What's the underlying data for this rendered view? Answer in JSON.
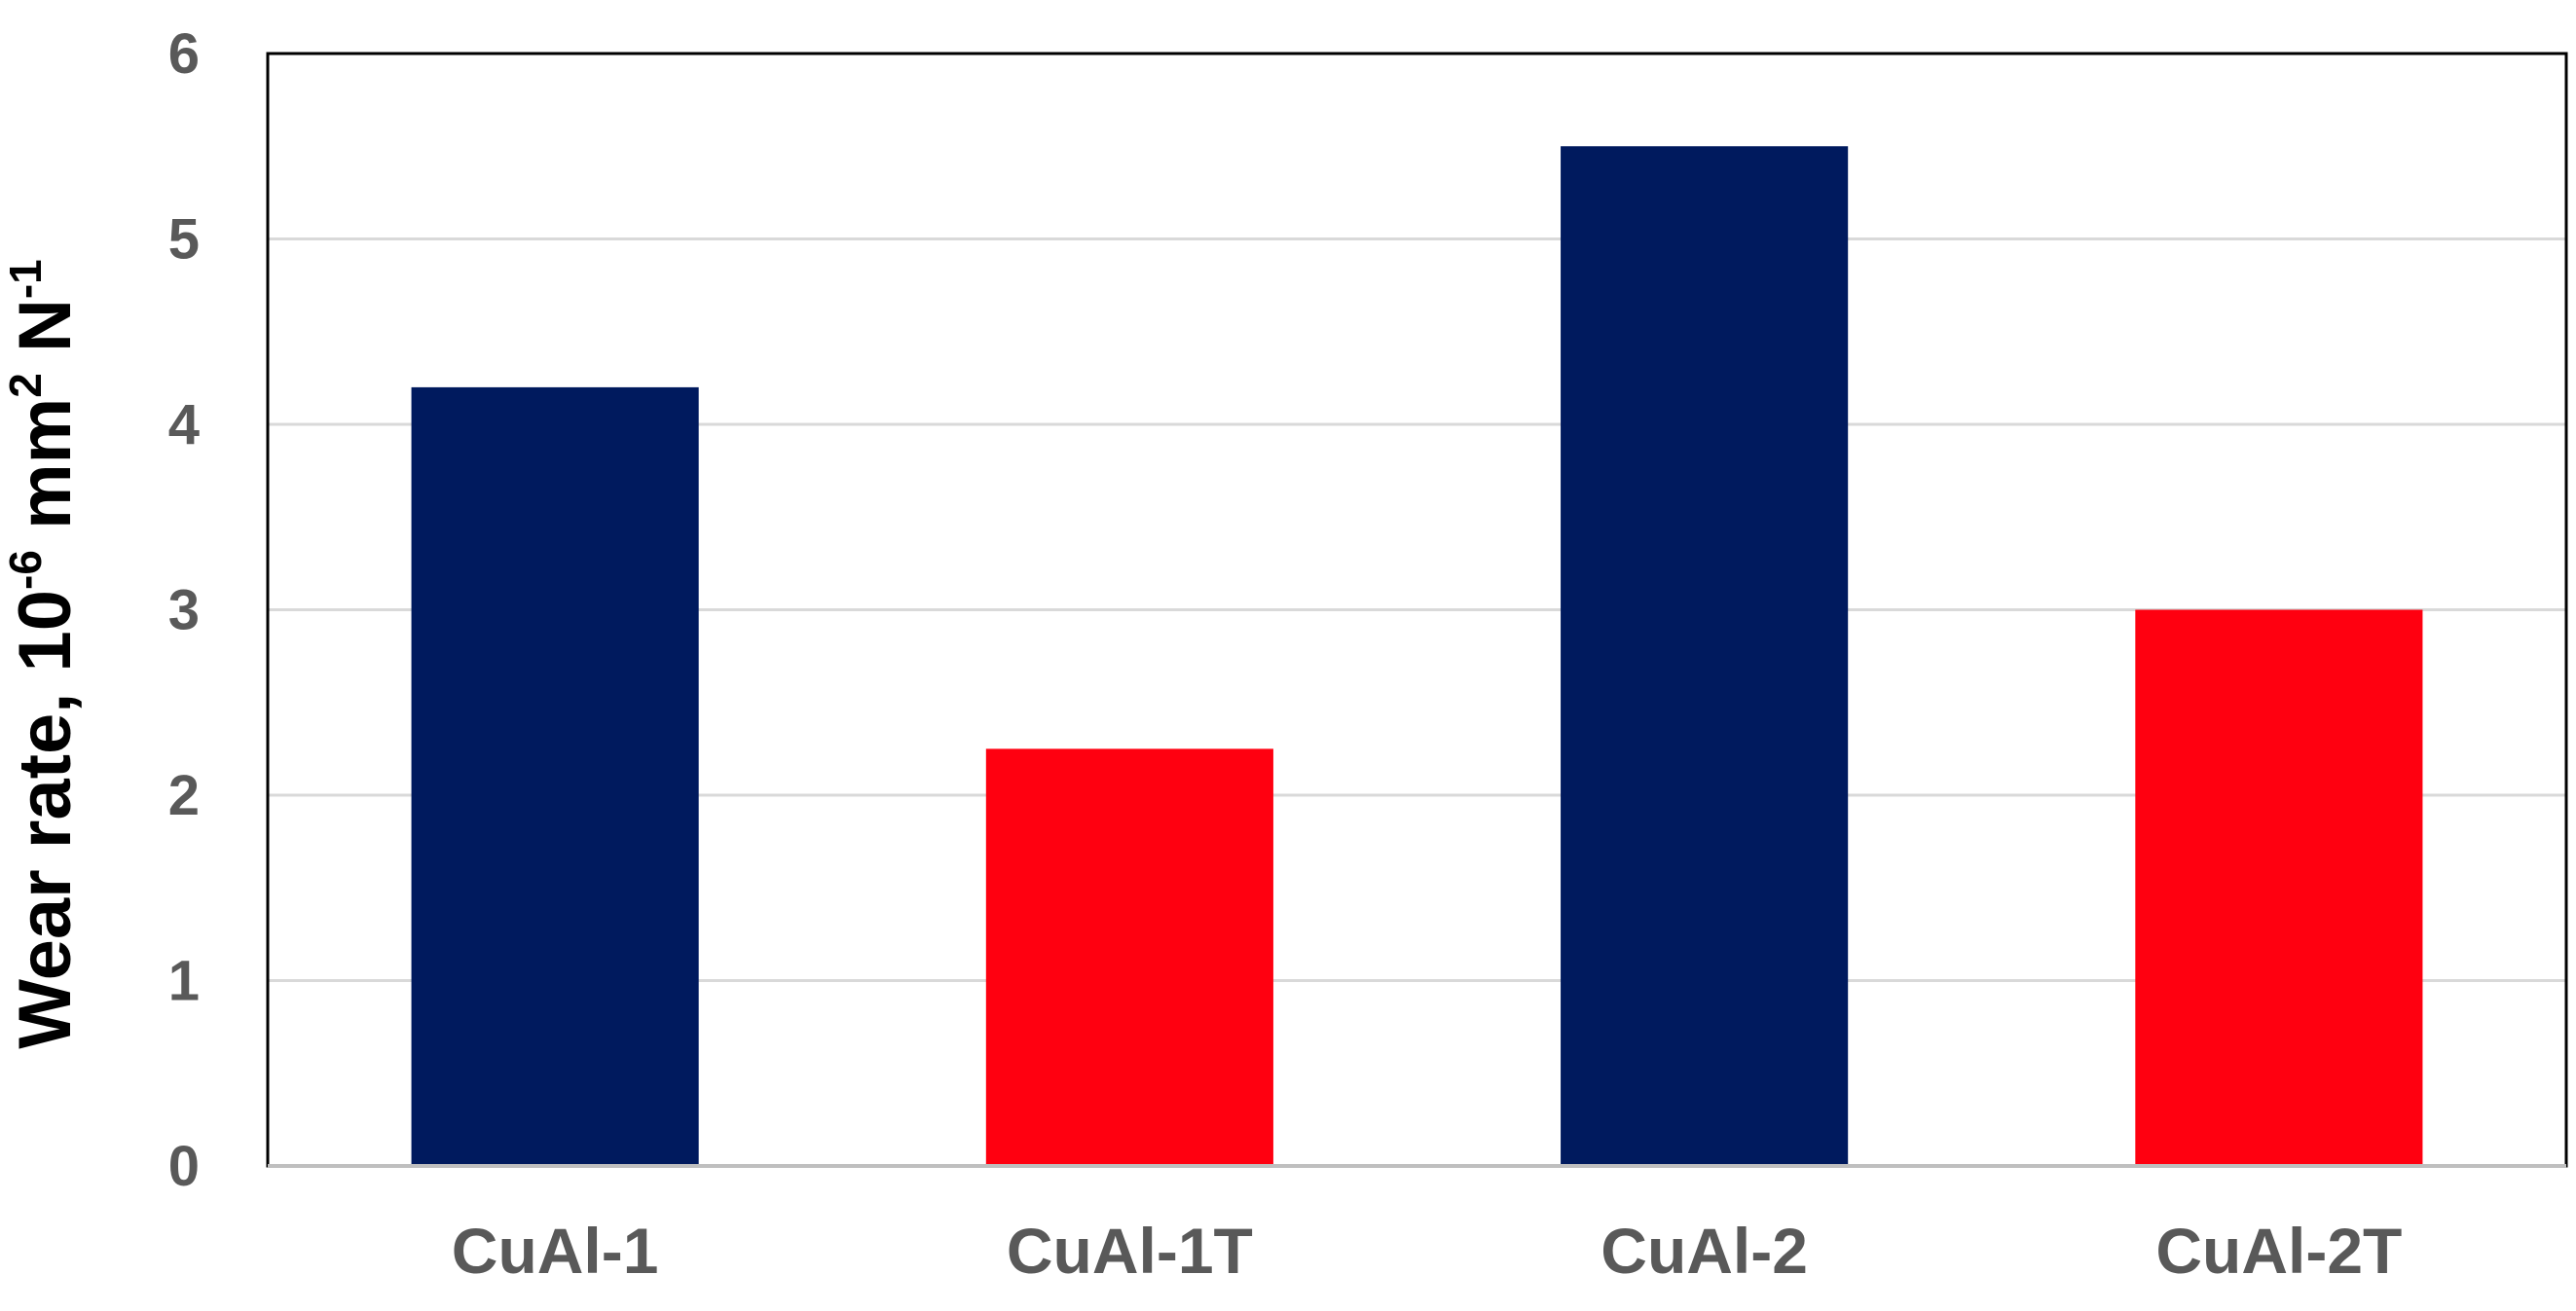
{
  "chart_data": {
    "type": "bar",
    "title": "",
    "xlabel": "",
    "ylabel": {
      "prefix": "Wear rate, 10",
      "exp1": "-6",
      "mid": " mm",
      "exp2": "2",
      "mid2": " N",
      "exp3": "-1"
    },
    "ylim": [
      0,
      6
    ],
    "yticks": [
      "0",
      "1",
      "2",
      "3",
      "4",
      "5",
      "6"
    ],
    "categories": [
      "CuAl-1",
      "CuAl-1T",
      "CuAl-2",
      "CuAl-2T"
    ],
    "values": [
      4.2,
      2.25,
      5.5,
      3.0
    ],
    "bar_colors": [
      "#001A5E",
      "#FF0010",
      "#001A5E",
      "#FF0010"
    ],
    "grid": true,
    "legend": "none"
  }
}
